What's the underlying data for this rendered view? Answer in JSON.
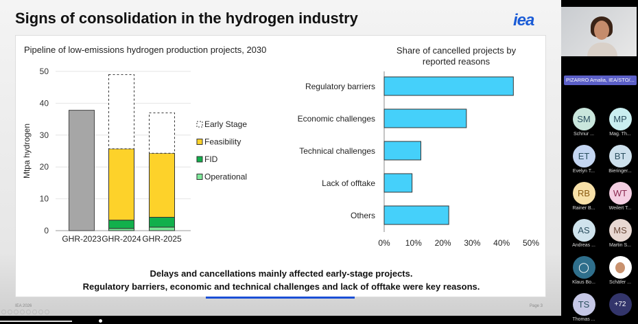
{
  "slide": {
    "title": "Signs of consolidation in the hydrogen industry",
    "logo": "iea",
    "footer_left": "IEA 2026",
    "footer_right": "Page 3",
    "caption_line1": "Delays and cancellations mainly affected early-stage projects.",
    "caption_line2": "Regulatory barriers, economic and technical challenges and lack of offtake were key reasons."
  },
  "chart_data": [
    {
      "type": "bar",
      "stacked": true,
      "title": "Pipeline of low-emissions hydrogen production projects, 2030",
      "ylabel": "Mtpa hydrogen",
      "ylim": [
        0,
        50
      ],
      "yticks": [
        0,
        10,
        20,
        30,
        40,
        50
      ],
      "grid": true,
      "legend_position": "right",
      "categories": [
        "GHR-2023",
        "GHR-2024",
        "GHR-2025"
      ],
      "series": [
        {
          "name": "Operational",
          "color": "#7ee89a",
          "values": [
            null,
            0.7,
            1.1
          ]
        },
        {
          "name": "FID",
          "color": "#12b04c",
          "values": [
            null,
            2.6,
            3.1
          ]
        },
        {
          "name": "Feasibility",
          "color": "#fdd22a",
          "values": [
            null,
            22.4,
            20.1
          ]
        },
        {
          "name": "Early Stage",
          "color": "#ffffff",
          "values": [
            null,
            23.3,
            12.7
          ]
        }
      ],
      "total_2023": {
        "color": "#a6a6a6",
        "value": 37.8
      }
    },
    {
      "type": "bar",
      "orientation": "horizontal",
      "title": "Share of cancelled projects by reported reasons",
      "xlim": [
        0,
        50
      ],
      "xticks": [
        "0%",
        "10%",
        "20%",
        "30%",
        "40%",
        "50%"
      ],
      "color": "#45d0fa",
      "categories": [
        "Regulatory barriers",
        "Economic challenges",
        "Technical challenges",
        "Lack of offtake",
        "Others"
      ],
      "values": [
        44,
        28,
        12.5,
        9.5,
        22
      ]
    }
  ],
  "meeting": {
    "presenter": "PIZARRO Amalia, IEA/STO/...",
    "participants": [
      {
        "initials": "SM",
        "name": "Schnur ...",
        "color": "#c9e6dc"
      },
      {
        "initials": "MP",
        "name": "Mag. Th...",
        "color": "#c9eef0"
      },
      {
        "initials": "ET",
        "name": "Evelyn T...",
        "color": "#c4d6f2"
      },
      {
        "initials": "BT",
        "name": "Bieringer...",
        "color": "#cde0ec"
      },
      {
        "initials": "RB",
        "name": "Rainer B...",
        "color": "#f7e0a8"
      },
      {
        "initials": "WT",
        "name": "Weilert T...",
        "color": "#f4cfe2"
      },
      {
        "initials": "AS",
        "name": "Andreas ...",
        "color": "#cfe3ec"
      },
      {
        "initials": "MS",
        "name": "Martin S...",
        "color": "#e8d8d2"
      },
      {
        "initials": "",
        "name": "Klaus Bo...",
        "color": "#2f6f8c"
      },
      {
        "initials": "",
        "name": "Schäfer ...",
        "color": "#ffffff"
      },
      {
        "initials": "TS",
        "name": "Thomas ...",
        "color": "#c6c8e6"
      },
      {
        "initials": "+72",
        "name": "",
        "color": "#33356b"
      }
    ]
  }
}
